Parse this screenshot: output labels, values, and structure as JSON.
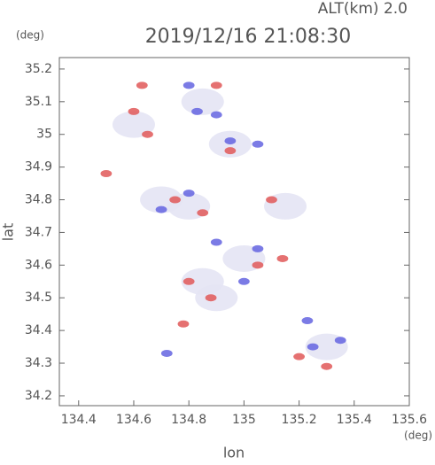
{
  "chart_data": {
    "type": "scatter",
    "title": "2019/12/16 21:08:30",
    "subtitle": "ALT(km)  2.0",
    "x_label": "lon",
    "x_unit": "(deg)",
    "y_label": "lat",
    "y_unit": "(deg)",
    "xlim": [
      134.33,
      135.6
    ],
    "ylim": [
      34.17,
      35.235
    ],
    "xticks": [
      134.4,
      134.6,
      134.8,
      135.0,
      135.2,
      135.4,
      135.6
    ],
    "yticks": [
      34.2,
      34.3,
      34.4,
      34.5,
      34.6,
      34.7,
      34.8,
      34.9,
      35.0,
      35.1,
      35.2
    ],
    "series": [
      {
        "color": "#e4e4f4",
        "x": [
          134.8,
          134.95,
          134.9,
          135.3,
          134.85,
          135.0,
          134.6,
          134.85,
          135.15,
          134.7
        ],
        "values": [
          34.78,
          34.97,
          34.5,
          34.35,
          34.55,
          34.62,
          35.03,
          35.1,
          34.78,
          34.8
        ]
      },
      {
        "color": "#e05858",
        "x": [
          134.63,
          134.9,
          134.6,
          134.65,
          134.95,
          134.5,
          134.85,
          134.75,
          135.1,
          135.14,
          134.78,
          134.8,
          135.05,
          135.2,
          135.3,
          134.88
        ],
        "values": [
          35.15,
          35.15,
          35.07,
          35.0,
          34.95,
          34.88,
          34.76,
          34.8,
          34.8,
          34.62,
          34.42,
          34.55,
          34.6,
          34.32,
          34.29,
          34.5
        ]
      },
      {
        "color": "#6464e0",
        "x": [
          134.8,
          134.83,
          134.9,
          134.72,
          135.25,
          135.35,
          134.8,
          134.7,
          135.0,
          135.05,
          135.23,
          134.95,
          135.05,
          134.9
        ],
        "values": [
          35.15,
          35.07,
          35.06,
          34.33,
          34.35,
          34.37,
          34.82,
          34.77,
          34.55,
          34.65,
          34.43,
          34.98,
          34.97,
          34.67
        ]
      }
    ]
  }
}
